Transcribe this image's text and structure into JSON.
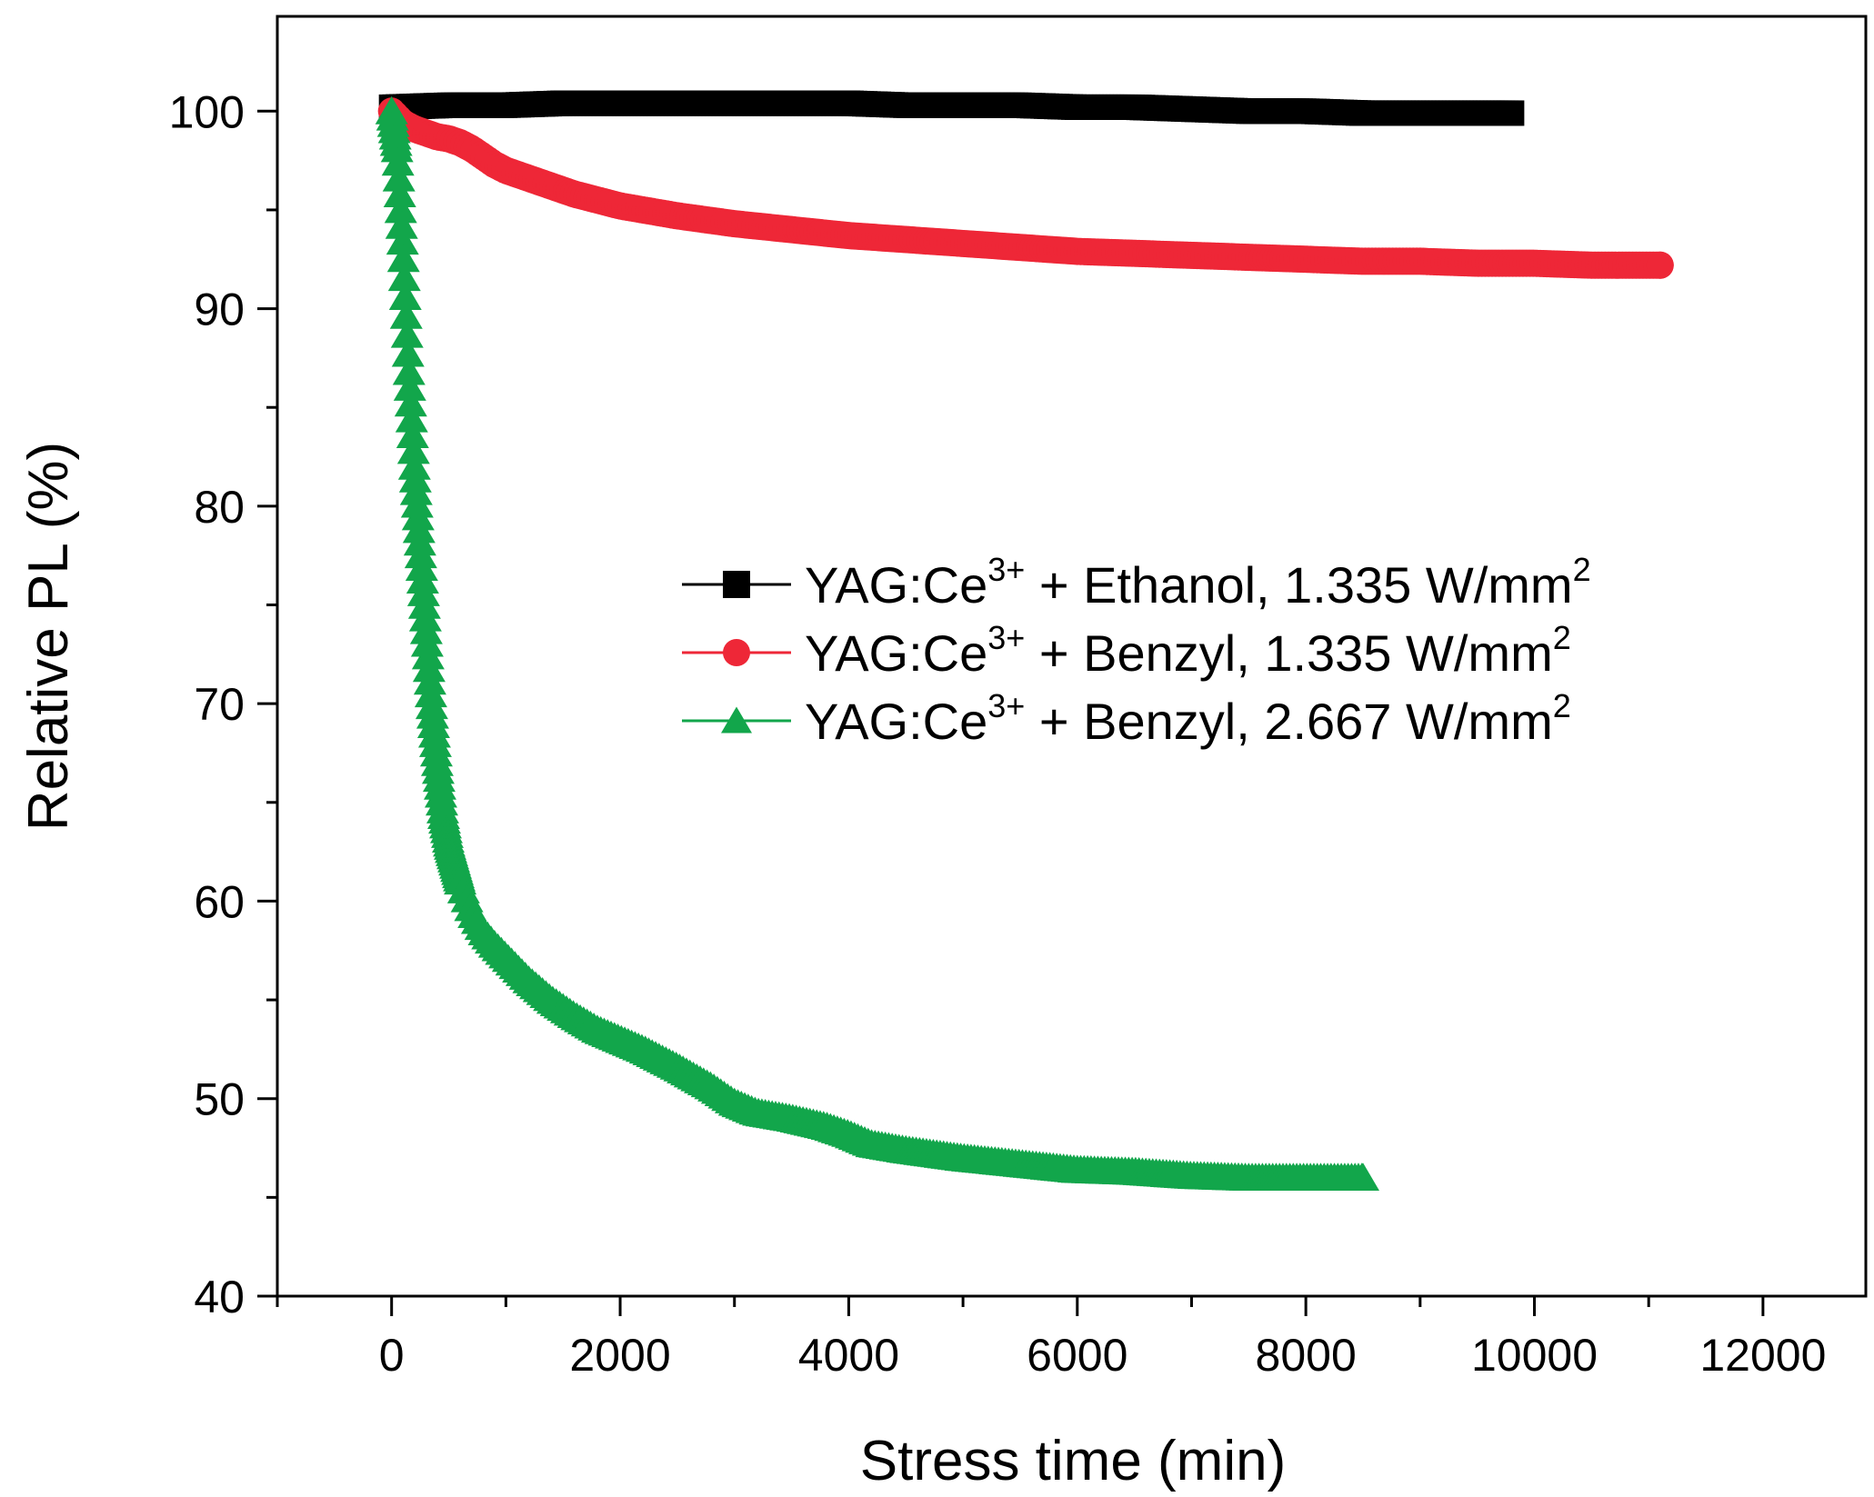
{
  "chart_data": {
    "type": "scatter",
    "title": "",
    "xlabel": "Stress time (min)",
    "ylabel": "Relative PL (%)",
    "xlim": [
      -1000,
      12900
    ],
    "ylim": [
      40,
      104.8
    ],
    "xticks": [
      0,
      2000,
      4000,
      6000,
      8000,
      10000,
      12000
    ],
    "yticks": [
      40,
      50,
      60,
      70,
      80,
      90,
      100
    ],
    "grid": false,
    "legend_position": "center-right",
    "series": [
      {
        "name": "YAG:Ce3+ + Ethanol, 1.335 W/mm2",
        "label_parts": [
          "YAG:Ce",
          "3+",
          " + Ethanol, 1.335 W/mm",
          "2"
        ],
        "marker": "square",
        "color": "#000000",
        "x": [
          0,
          500,
          1000,
          1500,
          2000,
          2500,
          3000,
          3500,
          4000,
          4500,
          5000,
          5500,
          6000,
          6500,
          7000,
          7500,
          8000,
          8500,
          9000,
          9500,
          9800
        ],
        "y": [
          100.2,
          100.3,
          100.3,
          100.4,
          100.4,
          100.4,
          100.4,
          100.4,
          100.4,
          100.3,
          100.3,
          100.3,
          100.2,
          100.2,
          100.1,
          100.0,
          100.0,
          99.9,
          99.9,
          99.9,
          99.9
        ]
      },
      {
        "name": "YAG:Ce3+ + Benzyl, 1.335 W/mm2",
        "label_parts": [
          "YAG:Ce",
          "3+",
          " + Benzyl, 1.335 W/mm",
          "2"
        ],
        "marker": "circle",
        "color": "#ee2737",
        "x": [
          0,
          100,
          200,
          300,
          400,
          500,
          600,
          700,
          800,
          900,
          1000,
          1200,
          1400,
          1600,
          1800,
          2000,
          2500,
          3000,
          3500,
          4000,
          4500,
          5000,
          5500,
          6000,
          6500,
          7000,
          7500,
          8000,
          8500,
          9000,
          9500,
          10000,
          10500,
          11000,
          11100
        ],
        "y": [
          100,
          99.4,
          99.1,
          98.9,
          98.7,
          98.6,
          98.4,
          98.1,
          97.7,
          97.3,
          97.0,
          96.6,
          96.2,
          95.8,
          95.5,
          95.2,
          94.7,
          94.3,
          94.0,
          93.7,
          93.5,
          93.3,
          93.1,
          92.9,
          92.8,
          92.7,
          92.6,
          92.5,
          92.4,
          92.4,
          92.3,
          92.3,
          92.2,
          92.2,
          92.2
        ]
      },
      {
        "name": "YAG:Ce3+ + Benzyl, 2.667 W/mm2",
        "label_parts": [
          "YAG:Ce",
          "3+",
          " + Benzyl, 2.667 W/mm",
          "2"
        ],
        "marker": "triangle",
        "color": "#12a64b",
        "x": [
          0,
          50,
          100,
          150,
          200,
          250,
          300,
          350,
          400,
          450,
          500,
          600,
          700,
          800,
          900,
          1000,
          1200,
          1400,
          1600,
          1800,
          2000,
          2200,
          2500,
          2800,
          3000,
          3200,
          3500,
          3800,
          4000,
          4200,
          4500,
          5000,
          5500,
          6000,
          6500,
          7000,
          7500,
          8000,
          8500
        ],
        "y": [
          100,
          98,
          93,
          87,
          82,
          78,
          74,
          70,
          67,
          64.5,
          63,
          61,
          59.5,
          58.5,
          57.8,
          57.2,
          56,
          55,
          54.2,
          53.5,
          53,
          52.5,
          51.6,
          50.6,
          49.8,
          49.3,
          49.0,
          48.6,
          48.2,
          47.7,
          47.4,
          47.0,
          46.7,
          46.4,
          46.3,
          46.1,
          46.0,
          46.0,
          46.0
        ]
      }
    ]
  }
}
